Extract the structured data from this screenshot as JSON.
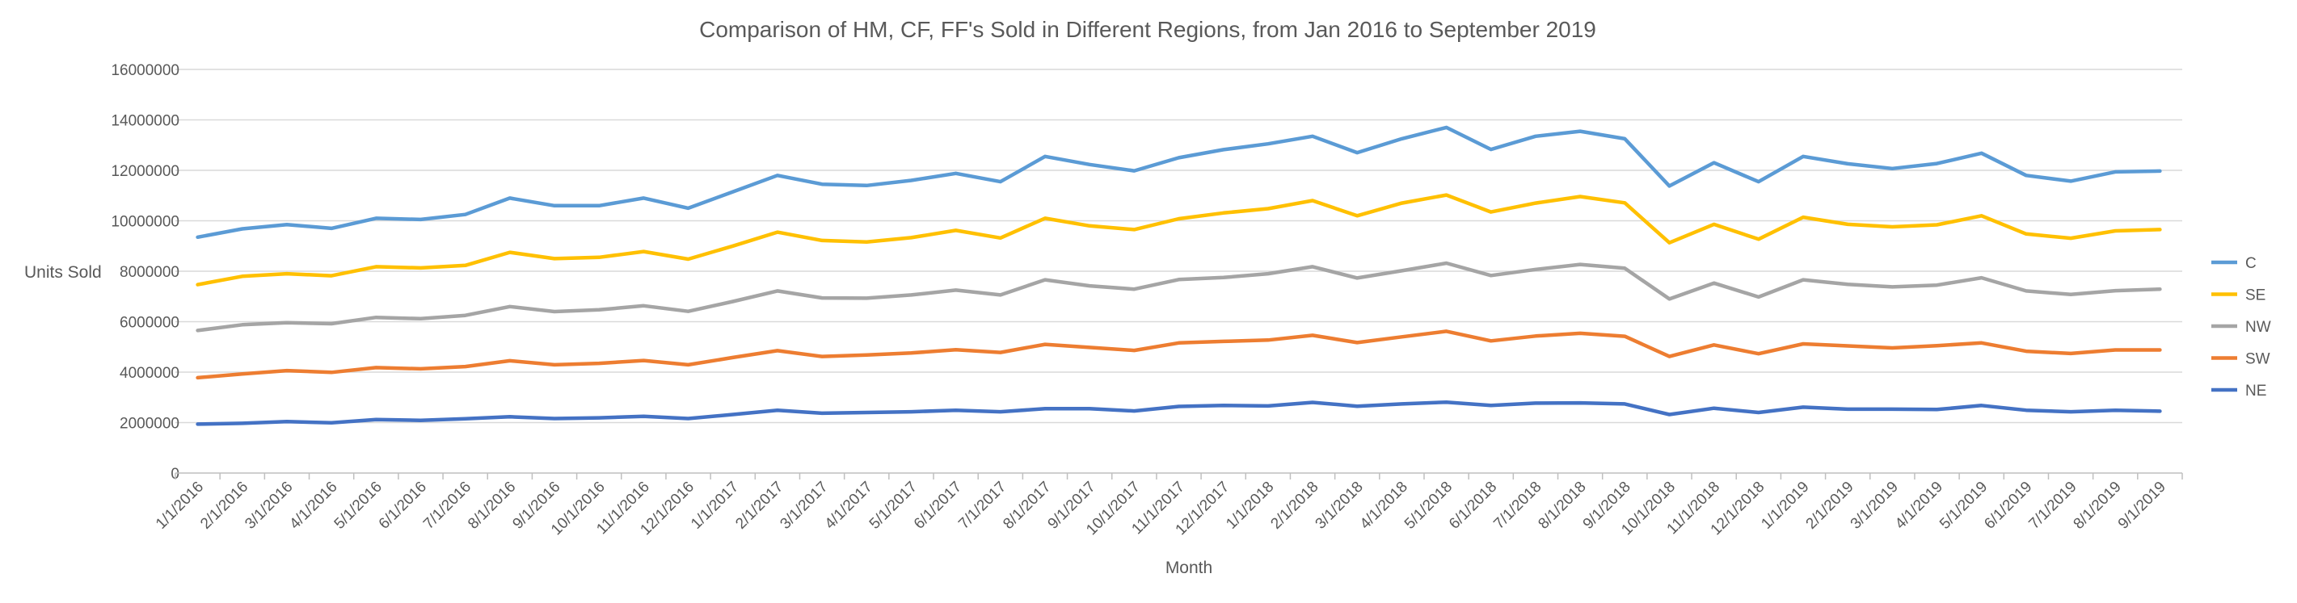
{
  "chart_data": {
    "type": "line",
    "title": "Comparison of HM, CF, FF's Sold in Different Regions, from Jan 2016 to September 2019",
    "xlabel": "Month",
    "ylabel": "Units Sold",
    "ylim": [
      0,
      16000000
    ],
    "yticks": [
      0,
      2000000,
      4000000,
      6000000,
      8000000,
      10000000,
      12000000,
      14000000,
      16000000
    ],
    "ytick_labels": [
      "0",
      "2000000",
      "4000000",
      "6000000",
      "8000000",
      "10000000",
      "12000000",
      "14000000",
      "16000000"
    ],
    "grid": true,
    "legend_position": "right",
    "categories": [
      "1/1/2016",
      "2/1/2016",
      "3/1/2016",
      "4/1/2016",
      "5/1/2016",
      "6/1/2016",
      "7/1/2016",
      "8/1/2016",
      "9/1/2016",
      "10/1/2016",
      "11/1/2016",
      "12/1/2016",
      "1/1/2017",
      "2/1/2017",
      "3/1/2017",
      "4/1/2017",
      "5/1/2017",
      "6/1/2017",
      "7/1/2017",
      "8/1/2017",
      "9/1/2017",
      "10/1/2017",
      "11/1/2017",
      "12/1/2017",
      "1/1/2018",
      "2/1/2018",
      "3/1/2018",
      "4/1/2018",
      "5/1/2018",
      "6/1/2018",
      "7/1/2018",
      "8/1/2018",
      "9/1/2018",
      "10/1/2018",
      "11/1/2018",
      "12/1/2018",
      "1/1/2019",
      "2/1/2019",
      "3/1/2019",
      "4/1/2019",
      "5/1/2019",
      "6/1/2019",
      "7/1/2019",
      "8/1/2019",
      "9/1/2019"
    ],
    "series": [
      {
        "name": "C",
        "color": "#5b9bd5",
        "values": [
          9350000,
          9680000,
          9850000,
          9700000,
          10100000,
          10050000,
          10250000,
          10900000,
          10600000,
          10600000,
          10900000,
          10500000,
          11150000,
          11800000,
          11450000,
          11400000,
          11600000,
          11880000,
          11550000,
          12550000,
          12230000,
          11980000,
          12500000,
          12820000,
          13050000,
          13350000,
          12700000,
          13250000,
          13700000,
          12830000,
          13350000,
          13550000,
          13250000,
          11380000,
          12300000,
          11550000,
          12550000,
          12260000,
          12070000,
          12270000,
          12680000,
          11800000,
          11570000,
          11940000,
          11970000
        ]
      },
      {
        "name": "SE",
        "color": "#ffc000",
        "values": [
          7470000,
          7800000,
          7900000,
          7820000,
          8180000,
          8130000,
          8230000,
          8750000,
          8500000,
          8550000,
          8780000,
          8480000,
          9000000,
          9550000,
          9220000,
          9160000,
          9330000,
          9620000,
          9320000,
          10100000,
          9800000,
          9650000,
          10080000,
          10310000,
          10480000,
          10800000,
          10200000,
          10700000,
          11020000,
          10350000,
          10700000,
          10960000,
          10710000,
          9130000,
          9860000,
          9270000,
          10140000,
          9860000,
          9760000,
          9840000,
          10200000,
          9480000,
          9310000,
          9600000,
          9650000
        ]
      },
      {
        "name": "NW",
        "color": "#a5a5a5",
        "values": [
          5650000,
          5880000,
          5960000,
          5920000,
          6170000,
          6120000,
          6250000,
          6600000,
          6400000,
          6470000,
          6630000,
          6410000,
          6800000,
          7220000,
          6940000,
          6930000,
          7060000,
          7250000,
          7060000,
          7660000,
          7420000,
          7290000,
          7670000,
          7750000,
          7900000,
          8180000,
          7730000,
          8020000,
          8320000,
          7830000,
          8070000,
          8270000,
          8120000,
          6900000,
          7530000,
          6980000,
          7660000,
          7480000,
          7380000,
          7450000,
          7740000,
          7220000,
          7080000,
          7230000,
          7290000
        ]
      },
      {
        "name": "SW",
        "color": "#ed7d31",
        "values": [
          3780000,
          3930000,
          4060000,
          3990000,
          4180000,
          4130000,
          4220000,
          4450000,
          4290000,
          4350000,
          4460000,
          4290000,
          4580000,
          4850000,
          4620000,
          4680000,
          4760000,
          4890000,
          4780000,
          5100000,
          4980000,
          4860000,
          5160000,
          5220000,
          5270000,
          5460000,
          5170000,
          5400000,
          5620000,
          5240000,
          5430000,
          5540000,
          5420000,
          4620000,
          5080000,
          4730000,
          5120000,
          5040000,
          4960000,
          5050000,
          5160000,
          4830000,
          4740000,
          4880000,
          4880000
        ]
      },
      {
        "name": "NE",
        "color": "#4472c4",
        "values": [
          1940000,
          1970000,
          2040000,
          1990000,
          2120000,
          2090000,
          2150000,
          2230000,
          2160000,
          2190000,
          2250000,
          2160000,
          2320000,
          2490000,
          2370000,
          2400000,
          2430000,
          2490000,
          2430000,
          2550000,
          2550000,
          2460000,
          2640000,
          2680000,
          2660000,
          2800000,
          2650000,
          2740000,
          2810000,
          2680000,
          2770000,
          2780000,
          2740000,
          2320000,
          2570000,
          2400000,
          2610000,
          2530000,
          2530000,
          2520000,
          2680000,
          2490000,
          2430000,
          2490000,
          2450000
        ]
      }
    ]
  }
}
